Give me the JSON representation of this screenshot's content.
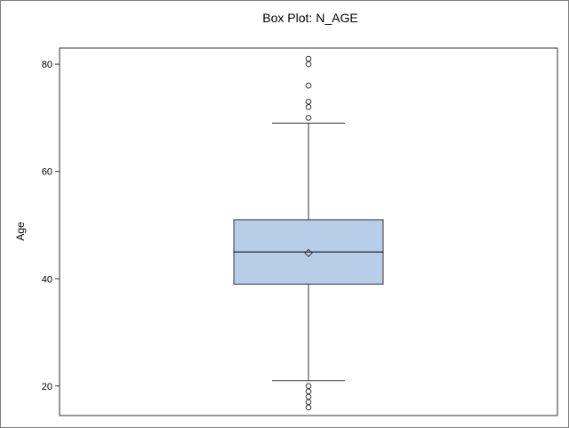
{
  "chart_data": {
    "type": "box",
    "title": "Box Plot: N_AGE",
    "xlabel": "",
    "ylabel": "Age",
    "ylim": [
      14.5,
      83
    ],
    "yticks": [
      20,
      40,
      60,
      80
    ],
    "box": {
      "min_whisker": 21,
      "q1": 39,
      "median": 45,
      "mean": 44.8,
      "q3": 51,
      "max_whisker": 69
    },
    "outliers": [
      16,
      17,
      18,
      19,
      20,
      70,
      72,
      73,
      76,
      80,
      81
    ],
    "colors": {
      "box_fill": "#b8cde8",
      "box_stroke": "#333333",
      "frame": "#7f7f7f"
    }
  }
}
